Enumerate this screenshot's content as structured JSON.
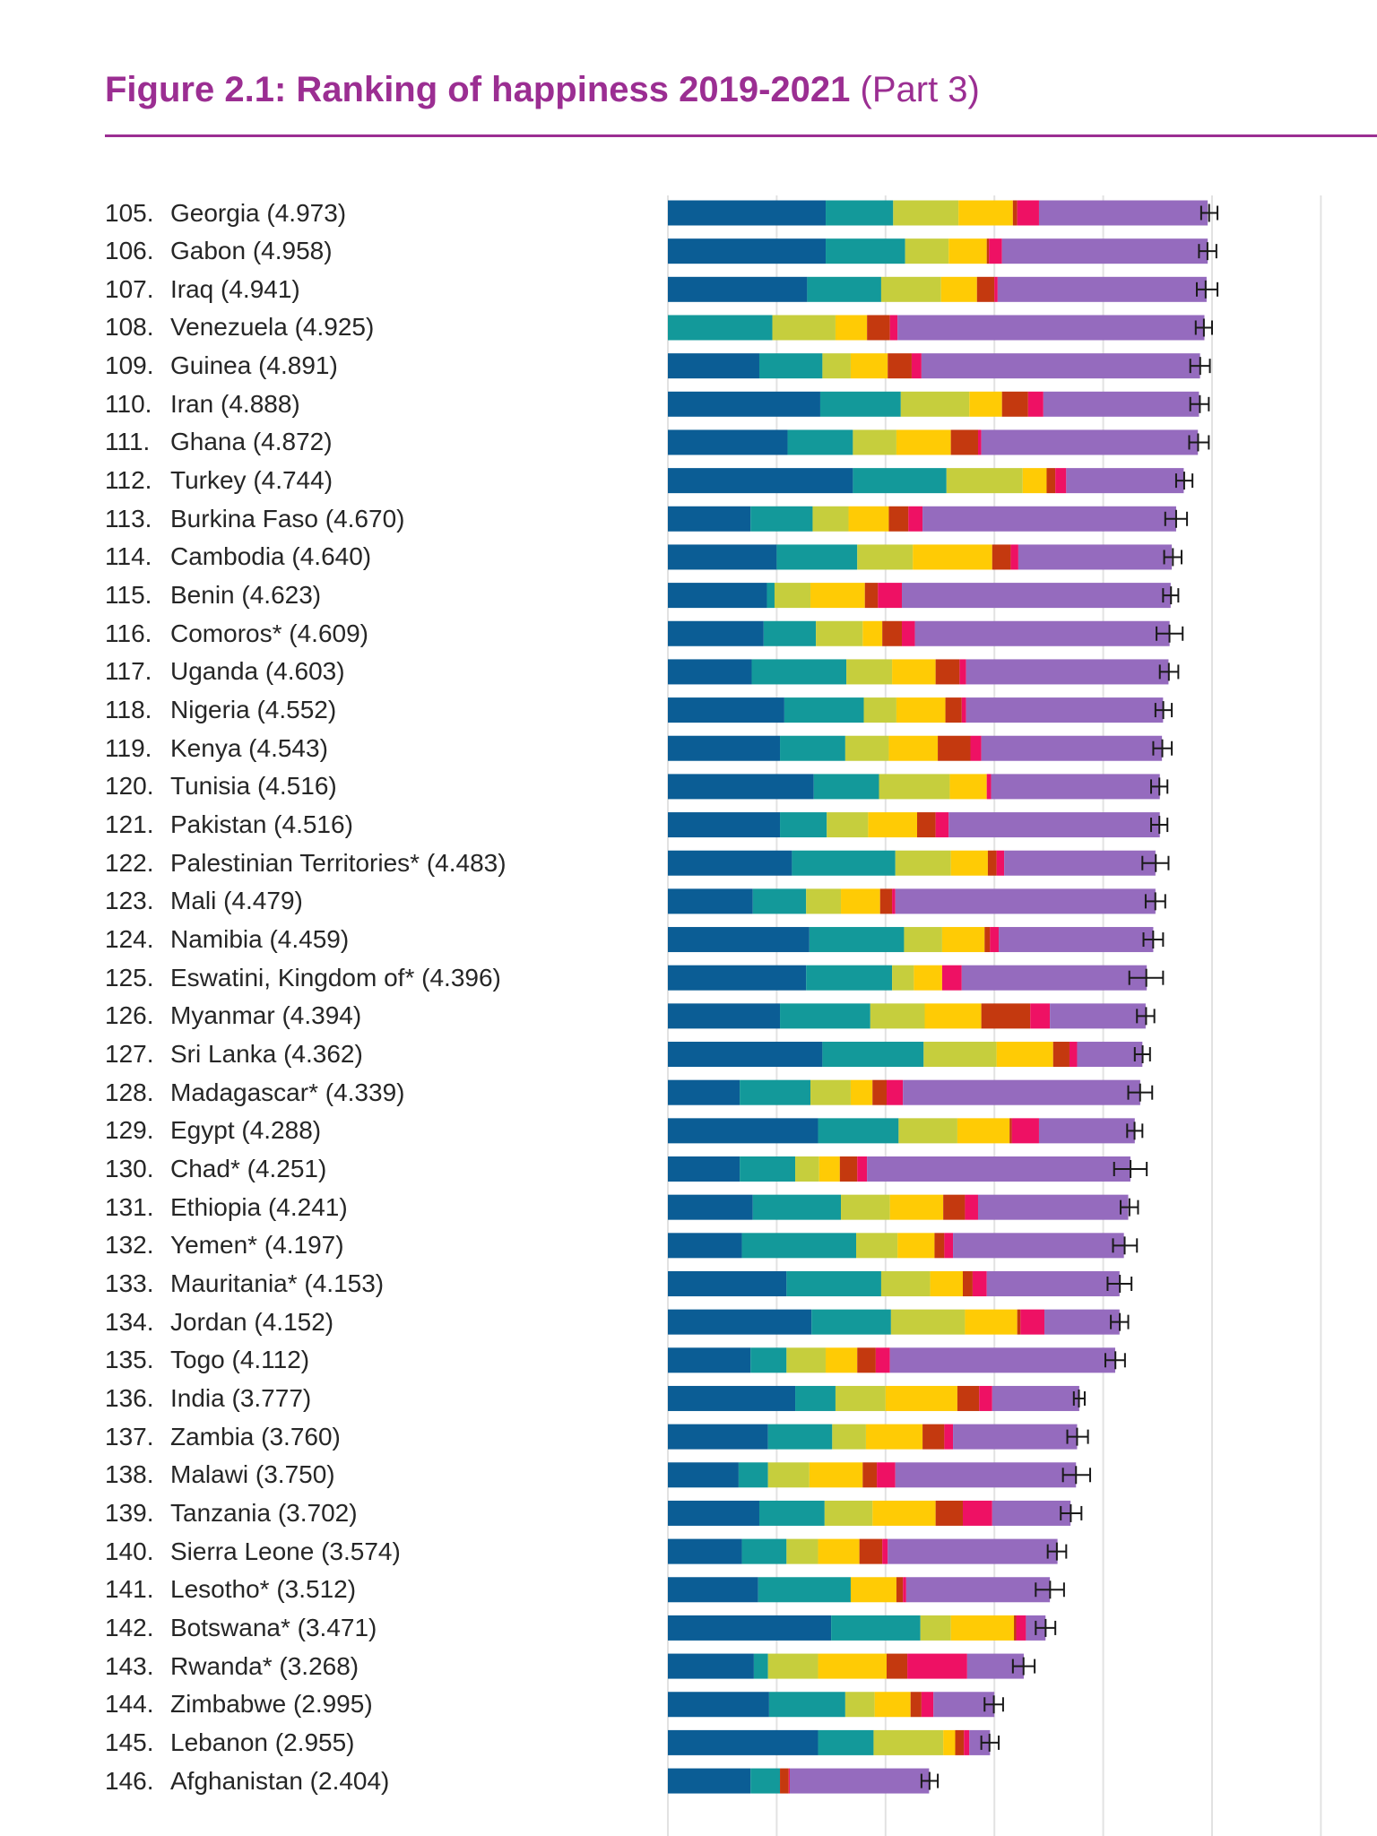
{
  "figure": {
    "title": "Figure 2.1: Ranking of happiness 2019-2021",
    "part": "(Part 3)"
  },
  "chart_data": {
    "type": "bar",
    "stacked": true,
    "orientation": "horizontal",
    "title": "Figure 2.1: Ranking of happiness 2019-2021 (Part 3)",
    "xlabel": "",
    "ylabel": "",
    "xlim": [
      0,
      7.4
    ],
    "grid": true,
    "legend": "none",
    "segment_colors": [
      "#0b5d95",
      "#13999a",
      "#c6ce3d",
      "#ffcb05",
      "#c4390f",
      "#ee1164",
      "#956bbe"
    ],
    "rows": [
      {
        "rank": "105.",
        "country": "Georgia (4.973)",
        "score": 4.973,
        "ci": [
          4.9,
          5.05
        ],
        "segments": [
          1.45,
          0.62,
          0.6,
          0.5,
          0.04,
          0.2,
          1.55
        ]
      },
      {
        "rank": "106.",
        "country": "Gabon (4.958)",
        "score": 4.958,
        "ci": [
          4.88,
          5.04
        ],
        "segments": [
          1.45,
          0.73,
          0.4,
          0.35,
          0.02,
          0.12,
          1.89
        ]
      },
      {
        "rank": "107.",
        "country": "Iraq (4.941)",
        "score": 4.941,
        "ci": [
          4.86,
          5.05
        ],
        "segments": [
          1.28,
          0.68,
          0.55,
          0.33,
          0.16,
          0.03,
          1.92
        ]
      },
      {
        "rank": "108.",
        "country": "Venezuela (4.925)",
        "score": 4.925,
        "ci": [
          4.85,
          5.0
        ],
        "segments": [
          0.0,
          0.96,
          0.58,
          0.29,
          0.21,
          0.07,
          2.82
        ]
      },
      {
        "rank": "109.",
        "country": "Guinea (4.891)",
        "score": 4.891,
        "ci": [
          4.8,
          4.98
        ],
        "segments": [
          0.84,
          0.58,
          0.26,
          0.34,
          0.22,
          0.09,
          2.56
        ]
      },
      {
        "rank": "110.",
        "country": "Iran (4.888)",
        "score": 4.888,
        "ci": [
          4.8,
          4.97
        ],
        "segments": [
          1.4,
          0.74,
          0.63,
          0.3,
          0.24,
          0.14,
          1.43
        ]
      },
      {
        "rank": "111.",
        "country": "Ghana (4.872)",
        "score": 4.872,
        "ci": [
          4.79,
          4.97
        ],
        "segments": [
          1.1,
          0.6,
          0.4,
          0.5,
          0.25,
          0.03,
          1.99
        ]
      },
      {
        "rank": "112.",
        "country": "Turkey (4.744)",
        "score": 4.744,
        "ci": [
          4.67,
          4.82
        ],
        "segments": [
          1.7,
          0.86,
          0.7,
          0.22,
          0.08,
          0.1,
          1.08
        ]
      },
      {
        "rank": "113.",
        "country": "Burkina Faso (4.670)",
        "score": 4.67,
        "ci": [
          4.57,
          4.77
        ],
        "segments": [
          0.76,
          0.57,
          0.33,
          0.37,
          0.18,
          0.13,
          2.33
        ]
      },
      {
        "rank": "114.",
        "country": "Cambodia (4.640)",
        "score": 4.64,
        "ci": [
          4.56,
          4.72
        ],
        "segments": [
          1.0,
          0.74,
          0.51,
          0.73,
          0.17,
          0.07,
          1.41
        ]
      },
      {
        "rank": "115.",
        "country": "Benin (4.623)",
        "score": 4.623,
        "ci": [
          4.55,
          4.69
        ],
        "segments": [
          0.91,
          0.07,
          0.33,
          0.5,
          0.12,
          0.22,
          2.47
        ]
      },
      {
        "rank": "116.",
        "country": "Comoros* (4.609)",
        "score": 4.609,
        "ci": [
          4.49,
          4.73
        ],
        "segments": [
          0.88,
          0.48,
          0.43,
          0.18,
          0.18,
          0.12,
          2.34
        ]
      },
      {
        "rank": "117.",
        "country": "Uganda (4.603)",
        "score": 4.603,
        "ci": [
          4.52,
          4.69
        ],
        "segments": [
          0.77,
          0.87,
          0.42,
          0.4,
          0.22,
          0.06,
          1.86
        ]
      },
      {
        "rank": "118.",
        "country": "Nigeria (4.552)",
        "score": 4.552,
        "ci": [
          4.48,
          4.63
        ],
        "segments": [
          1.07,
          0.73,
          0.3,
          0.45,
          0.15,
          0.04,
          1.81
        ]
      },
      {
        "rank": "119.",
        "country": "Kenya (4.543)",
        "score": 4.543,
        "ci": [
          4.46,
          4.63
        ],
        "segments": [
          1.03,
          0.6,
          0.4,
          0.45,
          0.3,
          0.1,
          1.66
        ]
      },
      {
        "rank": "120.",
        "country": "Tunisia (4.516)",
        "score": 4.516,
        "ci": [
          4.44,
          4.59
        ],
        "segments": [
          1.34,
          0.6,
          0.65,
          0.34,
          0.0,
          0.04,
          1.55
        ]
      },
      {
        "rank": "121.",
        "country": "Pakistan (4.516)",
        "score": 4.516,
        "ci": [
          4.44,
          4.59
        ],
        "segments": [
          1.03,
          0.43,
          0.38,
          0.45,
          0.17,
          0.12,
          1.94
        ]
      },
      {
        "rank": "122.",
        "country": "Palestinian Territories* (4.483)",
        "score": 4.483,
        "ci": [
          4.36,
          4.6
        ],
        "segments": [
          1.14,
          0.95,
          0.51,
          0.34,
          0.08,
          0.07,
          1.39
        ]
      },
      {
        "rank": "123.",
        "country": "Mali (4.479)",
        "score": 4.479,
        "ci": [
          4.39,
          4.57
        ],
        "segments": [
          0.78,
          0.49,
          0.32,
          0.36,
          0.11,
          0.03,
          2.39
        ]
      },
      {
        "rank": "124.",
        "country": "Namibia (4.459)",
        "score": 4.459,
        "ci": [
          4.37,
          4.55
        ],
        "segments": [
          1.3,
          0.87,
          0.35,
          0.39,
          0.05,
          0.08,
          1.42
        ]
      },
      {
        "rank": "125.",
        "country": "Eswatini, Kingdom of* (4.396)",
        "score": 4.396,
        "ci": [
          4.24,
          4.55
        ],
        "segments": [
          1.27,
          0.79,
          0.2,
          0.26,
          0.0,
          0.18,
          1.7
        ]
      },
      {
        "rank": "126.",
        "country": "Myanmar (4.394)",
        "score": 4.394,
        "ci": [
          4.31,
          4.47
        ],
        "segments": [
          1.03,
          0.83,
          0.5,
          0.52,
          0.45,
          0.18,
          0.88
        ]
      },
      {
        "rank": "127.",
        "country": "Sri Lanka (4.362)",
        "score": 4.362,
        "ci": [
          4.29,
          4.43
        ],
        "segments": [
          1.42,
          0.93,
          0.67,
          0.52,
          0.15,
          0.07,
          0.6
        ]
      },
      {
        "rank": "128.",
        "country": "Madagascar* (4.339)",
        "score": 4.339,
        "ci": [
          4.23,
          4.45
        ],
        "segments": [
          0.66,
          0.65,
          0.37,
          0.2,
          0.13,
          0.15,
          2.18
        ]
      },
      {
        "rank": "129.",
        "country": "Egypt (4.288)",
        "score": 4.288,
        "ci": [
          4.22,
          4.36
        ],
        "segments": [
          1.38,
          0.74,
          0.54,
          0.48,
          0.02,
          0.25,
          0.88
        ]
      },
      {
        "rank": "130.",
        "country": "Chad* (4.251)",
        "score": 4.251,
        "ci": [
          4.1,
          4.4
        ],
        "segments": [
          0.66,
          0.51,
          0.22,
          0.19,
          0.16,
          0.09,
          2.42
        ]
      },
      {
        "rank": "131.",
        "country": "Ethiopia (4.241)",
        "score": 4.241,
        "ci": [
          4.16,
          4.32
        ],
        "segments": [
          0.78,
          0.81,
          0.45,
          0.49,
          0.2,
          0.12,
          1.38
        ]
      },
      {
        "rank": "132.",
        "country": "Yemen* (4.197)",
        "score": 4.197,
        "ci": [
          4.09,
          4.31
        ],
        "segments": [
          0.68,
          1.05,
          0.38,
          0.34,
          0.09,
          0.08,
          1.57
        ]
      },
      {
        "rank": "133.",
        "country": "Mauritania* (4.153)",
        "score": 4.153,
        "ci": [
          4.04,
          4.26
        ],
        "segments": [
          1.09,
          0.87,
          0.45,
          0.3,
          0.09,
          0.13,
          1.22
        ]
      },
      {
        "rank": "134.",
        "country": "Jordan (4.152)",
        "score": 4.152,
        "ci": [
          4.07,
          4.23
        ],
        "segments": [
          1.32,
          0.73,
          0.68,
          0.48,
          0.03,
          0.22,
          0.69
        ]
      },
      {
        "rank": "135.",
        "country": "Togo (4.112)",
        "score": 4.112,
        "ci": [
          4.02,
          4.2
        ],
        "segments": [
          0.76,
          0.33,
          0.36,
          0.29,
          0.17,
          0.13,
          2.07
        ]
      },
      {
        "rank": "136.",
        "country": "India (3.777)",
        "score": 3.777,
        "ci": [
          3.73,
          3.83
        ],
        "segments": [
          1.17,
          0.37,
          0.46,
          0.66,
          0.2,
          0.12,
          0.8
        ]
      },
      {
        "rank": "137.",
        "country": "Zambia (3.760)",
        "score": 3.76,
        "ci": [
          3.67,
          3.86
        ],
        "segments": [
          0.92,
          0.59,
          0.31,
          0.52,
          0.2,
          0.08,
          1.14
        ]
      },
      {
        "rank": "138.",
        "country": "Malawi (3.750)",
        "score": 3.75,
        "ci": [
          3.63,
          3.88
        ],
        "segments": [
          0.65,
          0.27,
          0.38,
          0.49,
          0.13,
          0.17,
          1.66
        ]
      },
      {
        "rank": "139.",
        "country": "Tanzania (3.702)",
        "score": 3.702,
        "ci": [
          3.61,
          3.8
        ],
        "segments": [
          0.84,
          0.6,
          0.44,
          0.58,
          0.25,
          0.27,
          0.72
        ]
      },
      {
        "rank": "140.",
        "country": "Sierra Leone (3.574)",
        "score": 3.574,
        "ci": [
          3.49,
          3.66
        ],
        "segments": [
          0.68,
          0.41,
          0.29,
          0.38,
          0.21,
          0.05,
          1.56
        ]
      },
      {
        "rank": "141.",
        "country": "Lesotho* (3.512)",
        "score": 3.512,
        "ci": [
          3.38,
          3.64
        ],
        "segments": [
          0.83,
          0.85,
          0.0,
          0.42,
          0.06,
          0.03,
          1.32
        ]
      },
      {
        "rank": "142.",
        "country": "Botswana* (3.471)",
        "score": 3.471,
        "ci": [
          3.38,
          3.56
        ],
        "segments": [
          1.5,
          0.82,
          0.28,
          0.58,
          0.02,
          0.09,
          0.18
        ]
      },
      {
        "rank": "143.",
        "country": "Rwanda* (3.268)",
        "score": 3.268,
        "ci": [
          3.17,
          3.37
        ],
        "segments": [
          0.79,
          0.13,
          0.46,
          0.63,
          0.19,
          0.55,
          0.52
        ]
      },
      {
        "rank": "144.",
        "country": "Zimbabwe (2.995)",
        "score": 2.995,
        "ci": [
          2.91,
          3.08
        ],
        "segments": [
          0.93,
          0.7,
          0.27,
          0.33,
          0.1,
          0.11,
          0.56
        ]
      },
      {
        "rank": "145.",
        "country": "Lebanon (2.955)",
        "score": 2.955,
        "ci": [
          2.88,
          3.04
        ],
        "segments": [
          1.38,
          0.51,
          0.64,
          0.11,
          0.08,
          0.05,
          0.19
        ]
      },
      {
        "rank": "146.",
        "country": "Afghanistan (2.404)",
        "score": 2.404,
        "ci": [
          2.33,
          2.48
        ],
        "segments": [
          0.76,
          0.27,
          0.0,
          0.0,
          0.08,
          0.01,
          1.28
        ]
      }
    ]
  }
}
